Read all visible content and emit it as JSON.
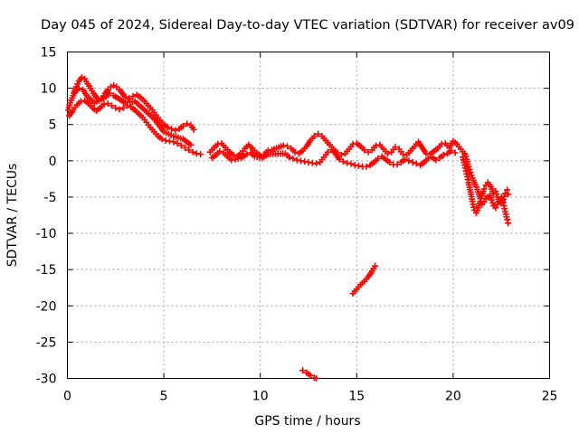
{
  "chart_data": {
    "type": "scatter",
    "title": "Day 045 of 2024, Sidereal Day-to-day VTEC variation (SDTVAR) for receiver av09",
    "xlabel": "GPS time / hours",
    "ylabel": "SDTVAR / TECUs",
    "xlim": [
      0,
      25
    ],
    "ylim": [
      -30,
      15
    ],
    "xticks": [
      0,
      5,
      10,
      15,
      20,
      25
    ],
    "yticks": [
      -30,
      -25,
      -20,
      -15,
      -10,
      -5,
      0,
      5,
      10,
      15
    ],
    "xtick_labels": [
      "0",
      "5",
      "10",
      "15",
      "20",
      "25"
    ],
    "ytick_labels": [
      "-30",
      "-25",
      "-20",
      "-15",
      "-10",
      "-5",
      "0",
      "5",
      "10",
      "15"
    ],
    "grid": true,
    "marker": "plus",
    "color": "#ff0000",
    "series": [
      {
        "name": "upper-early",
        "points": [
          [
            0.05,
            7.0
          ],
          [
            0.15,
            8.0
          ],
          [
            0.3,
            9.0
          ],
          [
            0.45,
            10.2
          ],
          [
            0.6,
            11.0
          ],
          [
            0.75,
            11.5
          ],
          [
            0.9,
            11.3
          ],
          [
            1.05,
            10.6
          ],
          [
            1.2,
            10.0
          ],
          [
            1.35,
            9.3
          ],
          [
            1.5,
            8.8
          ],
          [
            1.65,
            8.3
          ],
          [
            1.8,
            8.6
          ],
          [
            1.95,
            9.3
          ],
          [
            2.1,
            9.8
          ],
          [
            2.25,
            10.2
          ],
          [
            2.4,
            10.4
          ],
          [
            2.55,
            10.2
          ],
          [
            2.7,
            9.8
          ],
          [
            2.85,
            9.3
          ],
          [
            3.0,
            8.8
          ],
          [
            3.2,
            8.6
          ],
          [
            3.4,
            8.9
          ],
          [
            3.6,
            9.1
          ],
          [
            3.8,
            8.7
          ],
          [
            4.0,
            8.2
          ],
          [
            4.2,
            7.6
          ],
          [
            4.4,
            7.0
          ],
          [
            4.6,
            6.3
          ],
          [
            4.8,
            5.6
          ],
          [
            5.0,
            5.0
          ],
          [
            5.2,
            4.6
          ],
          [
            5.4,
            4.4
          ],
          [
            5.6,
            4.2
          ],
          [
            5.8,
            4.4
          ],
          [
            6.0,
            4.8
          ],
          [
            6.2,
            5.1
          ],
          [
            6.4,
            4.9
          ],
          [
            6.55,
            4.3
          ]
        ]
      },
      {
        "name": "lower-early",
        "points": [
          [
            0.1,
            6.2
          ],
          [
            0.3,
            7.0
          ],
          [
            0.5,
            7.7
          ],
          [
            0.7,
            8.2
          ],
          [
            0.9,
            8.3
          ],
          [
            1.1,
            7.9
          ],
          [
            1.3,
            7.3
          ],
          [
            1.5,
            6.9
          ],
          [
            1.7,
            7.3
          ],
          [
            1.9,
            7.8
          ],
          [
            2.1,
            7.9
          ],
          [
            2.3,
            7.6
          ],
          [
            2.5,
            7.3
          ],
          [
            2.7,
            7.1
          ],
          [
            2.9,
            7.3
          ],
          [
            3.1,
            7.6
          ],
          [
            3.3,
            7.4
          ],
          [
            3.5,
            7.0
          ],
          [
            3.7,
            6.5
          ],
          [
            3.9,
            6.0
          ],
          [
            4.1,
            5.3
          ],
          [
            4.3,
            4.6
          ],
          [
            4.5,
            4.0
          ],
          [
            4.7,
            3.4
          ],
          [
            4.9,
            3.0
          ],
          [
            5.1,
            2.8
          ],
          [
            5.3,
            2.7
          ],
          [
            5.5,
            2.6
          ],
          [
            5.7,
            2.4
          ],
          [
            5.9,
            2.1
          ],
          [
            6.1,
            1.8
          ],
          [
            6.3,
            1.5
          ],
          [
            6.5,
            1.2
          ],
          [
            6.7,
            1.0
          ],
          [
            6.9,
            0.9
          ]
        ]
      },
      {
        "name": "extra-early",
        "points": [
          [
            0.4,
            9.5
          ],
          [
            0.6,
            10.0
          ],
          [
            0.8,
            9.8
          ],
          [
            1.0,
            9.0
          ],
          [
            1.2,
            8.5
          ],
          [
            1.4,
            8.0
          ],
          [
            2.0,
            8.8
          ],
          [
            2.2,
            9.3
          ],
          [
            2.4,
            9.0
          ],
          [
            3.0,
            8.0
          ],
          [
            3.5,
            8.2
          ],
          [
            4.0,
            7.0
          ],
          [
            4.5,
            5.8
          ],
          [
            5.0,
            4.0
          ],
          [
            5.5,
            3.4
          ],
          [
            6.0,
            3.0
          ],
          [
            6.4,
            2.2
          ]
        ]
      },
      {
        "name": "mid-band",
        "points": [
          [
            7.4,
            1.2
          ],
          [
            7.6,
            1.8
          ],
          [
            7.8,
            2.3
          ],
          [
            8.0,
            2.4
          ],
          [
            8.2,
            1.8
          ],
          [
            8.4,
            1.2
          ],
          [
            8.6,
            0.8
          ],
          [
            8.8,
            0.6
          ],
          [
            9.0,
            1.0
          ],
          [
            9.2,
            1.7
          ],
          [
            9.4,
            2.2
          ],
          [
            9.6,
            1.7
          ],
          [
            9.8,
            1.1
          ],
          [
            10.0,
            0.7
          ],
          [
            10.2,
            0.9
          ],
          [
            10.4,
            1.4
          ],
          [
            10.6,
            1.5
          ],
          [
            11.2,
            2.1
          ],
          [
            11.4,
            2.0
          ],
          [
            11.6,
            1.7
          ],
          [
            11.8,
            1.2
          ],
          [
            12.0,
            1.0
          ],
          [
            12.2,
            1.4
          ],
          [
            12.4,
            2.0
          ],
          [
            12.6,
            2.8
          ],
          [
            12.8,
            3.4
          ],
          [
            13.0,
            3.7
          ],
          [
            13.2,
            3.4
          ],
          [
            13.4,
            2.8
          ],
          [
            13.6,
            2.2
          ],
          [
            13.8,
            1.6
          ],
          [
            14.0,
            1.1
          ],
          [
            14.2,
            0.8
          ],
          [
            14.4,
            1.0
          ],
          [
            14.6,
            1.6
          ],
          [
            14.8,
            2.3
          ],
          [
            15.0,
            2.4
          ],
          [
            15.2,
            2.0
          ],
          [
            15.4,
            1.5
          ],
          [
            15.6,
            1.2
          ],
          [
            15.8,
            1.5
          ],
          [
            16.0,
            2.1
          ],
          [
            16.2,
            2.2
          ],
          [
            16.4,
            1.6
          ],
          [
            16.6,
            1.0
          ],
          [
            16.8,
            1.2
          ],
          [
            17.0,
            1.9
          ],
          [
            17.2,
            1.6
          ],
          [
            17.4,
            0.9
          ],
          [
            17.6,
            0.8
          ],
          [
            17.8,
            1.4
          ],
          [
            18.0,
            2.0
          ],
          [
            18.2,
            2.6
          ],
          [
            18.4,
            1.8
          ],
          [
            18.6,
            1.0
          ],
          [
            18.8,
            0.9
          ],
          [
            19.0,
            1.3
          ],
          [
            19.2,
            1.7
          ],
          [
            19.4,
            2.3
          ],
          [
            19.6,
            2.4
          ],
          [
            19.8,
            1.8
          ],
          [
            20.0,
            2.7
          ],
          [
            20.2,
            2.3
          ],
          [
            20.4,
            1.6
          ],
          [
            20.6,
            0.9
          ]
        ]
      },
      {
        "name": "mid-band-lower",
        "points": [
          [
            7.5,
            0.4
          ],
          [
            7.7,
            0.8
          ],
          [
            7.9,
            1.3
          ],
          [
            8.1,
            1.1
          ],
          [
            8.3,
            0.6
          ],
          [
            8.5,
            0.1
          ],
          [
            8.7,
            0.2
          ],
          [
            9.0,
            0.4
          ],
          [
            9.3,
            0.9
          ],
          [
            9.5,
            1.1
          ],
          [
            9.7,
            0.6
          ],
          [
            10.1,
            0.4
          ],
          [
            10.4,
            0.9
          ],
          [
            11.3,
            1.0
          ],
          [
            11.5,
            0.5
          ],
          [
            11.7,
            0.3
          ],
          [
            11.9,
            0.1
          ],
          [
            12.1,
            0.0
          ],
          [
            12.3,
            -0.1
          ],
          [
            12.5,
            -0.2
          ],
          [
            12.7,
            -0.3
          ],
          [
            12.9,
            -0.4
          ],
          [
            13.1,
            -0.2
          ],
          [
            13.3,
            0.5
          ],
          [
            13.5,
            1.2
          ],
          [
            13.7,
            1.5
          ],
          [
            13.9,
            1.0
          ],
          [
            14.1,
            0.2
          ],
          [
            14.3,
            -0.1
          ],
          [
            14.5,
            -0.3
          ],
          [
            14.7,
            -0.4
          ],
          [
            14.9,
            -0.6
          ],
          [
            15.1,
            -0.7
          ],
          [
            15.3,
            -0.8
          ],
          [
            15.5,
            -0.8
          ],
          [
            15.7,
            -0.6
          ],
          [
            15.9,
            -0.2
          ],
          [
            16.1,
            0.3
          ],
          [
            16.3,
            0.6
          ],
          [
            16.5,
            0.2
          ],
          [
            16.7,
            -0.2
          ],
          [
            16.9,
            -0.5
          ],
          [
            17.1,
            -0.5
          ],
          [
            17.3,
            -0.2
          ],
          [
            17.5,
            0.2
          ],
          [
            17.7,
            0.0
          ],
          [
            17.9,
            -0.2
          ],
          [
            18.1,
            -0.4
          ],
          [
            18.3,
            -0.6
          ],
          [
            18.5,
            -0.2
          ],
          [
            18.7,
            0.3
          ],
          [
            18.9,
            0.5
          ],
          [
            19.1,
            0.1
          ],
          [
            19.3,
            0.4
          ],
          [
            19.5,
            0.8
          ],
          [
            19.7,
            1.0
          ],
          [
            19.9,
            1.4
          ],
          [
            20.1,
            1.1
          ]
        ]
      },
      {
        "name": "late-drop",
        "points": [
          [
            20.5,
            0.5
          ],
          [
            20.6,
            -0.6
          ],
          [
            20.7,
            -1.8
          ],
          [
            20.8,
            -3.0
          ],
          [
            20.9,
            -4.3
          ],
          [
            21.0,
            -5.6
          ],
          [
            21.1,
            -6.8
          ],
          [
            21.2,
            -7.2
          ],
          [
            21.3,
            -6.5
          ],
          [
            21.4,
            -5.6
          ],
          [
            21.5,
            -4.8
          ],
          [
            21.6,
            -3.9
          ],
          [
            21.7,
            -3.4
          ],
          [
            21.8,
            -3.0
          ],
          [
            21.9,
            -3.3
          ],
          [
            22.0,
            -3.9
          ],
          [
            22.1,
            -4.5
          ],
          [
            22.2,
            -4.2
          ],
          [
            22.3,
            -5.0
          ],
          [
            22.4,
            -5.6
          ],
          [
            22.5,
            -5.9
          ],
          [
            22.6,
            -5.3
          ],
          [
            22.7,
            -4.5
          ],
          [
            22.8,
            -4.0
          ],
          [
            22.85,
            -4.6
          ]
        ]
      },
      {
        "name": "late-drop-2",
        "points": [
          [
            20.6,
            1.0
          ],
          [
            20.7,
            0.2
          ],
          [
            20.8,
            -0.8
          ],
          [
            20.9,
            -1.6
          ],
          [
            21.0,
            -2.4
          ],
          [
            21.1,
            -3.0
          ],
          [
            21.2,
            -3.6
          ],
          [
            21.3,
            -4.3
          ],
          [
            21.4,
            -5.2
          ],
          [
            21.5,
            -6.0
          ],
          [
            21.6,
            -5.7
          ],
          [
            21.7,
            -5.2
          ],
          [
            21.8,
            -5.0
          ],
          [
            21.9,
            -4.8
          ],
          [
            22.0,
            -5.4
          ],
          [
            22.1,
            -6.2
          ],
          [
            22.2,
            -6.5
          ],
          [
            22.3,
            -6.0
          ],
          [
            22.4,
            -5.3
          ],
          [
            22.5,
            -5.0
          ],
          [
            22.6,
            -5.8
          ],
          [
            22.7,
            -7.0
          ],
          [
            22.8,
            -8.1
          ],
          [
            22.85,
            -8.6
          ]
        ]
      },
      {
        "name": "outlier-1",
        "points": [
          [
            14.8,
            -18.3
          ],
          [
            15.0,
            -17.7
          ],
          [
            15.2,
            -17.1
          ],
          [
            15.4,
            -16.6
          ],
          [
            15.6,
            -16.0
          ],
          [
            15.8,
            -15.2
          ],
          [
            15.95,
            -14.5
          ]
        ]
      },
      {
        "name": "outlier-2",
        "points": [
          [
            12.2,
            -28.9
          ],
          [
            12.4,
            -29.2
          ],
          [
            12.6,
            -29.6
          ],
          [
            12.8,
            -29.9
          ],
          [
            12.9,
            -30.0
          ]
        ]
      }
    ]
  }
}
